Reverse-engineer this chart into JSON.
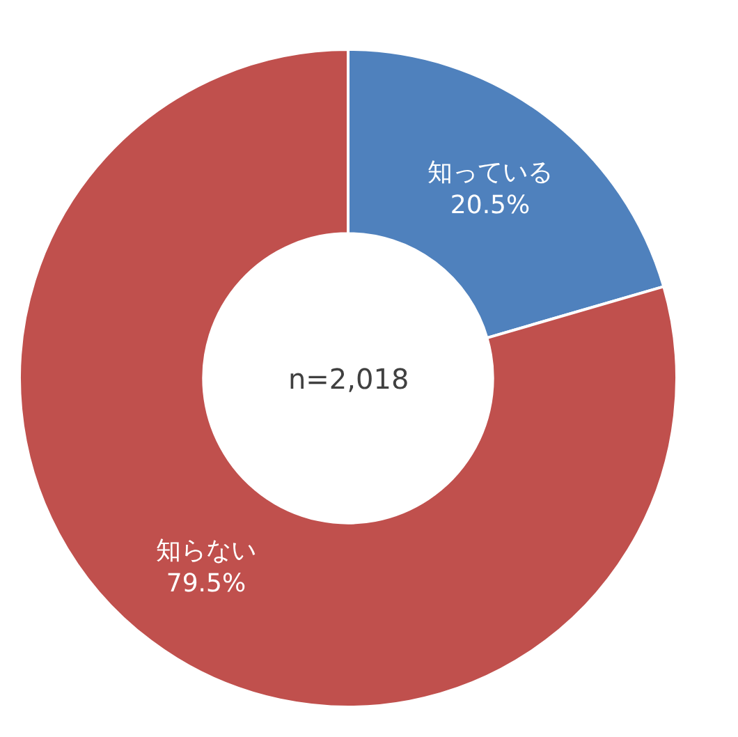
{
  "chart_data": {
    "type": "donut",
    "categories": [
      "知っている",
      "知らない"
    ],
    "values": [
      20.5,
      79.5
    ],
    "colors": [
      "#4f81bd",
      "#c0504d"
    ],
    "value_labels": [
      "20.5%",
      "79.5%"
    ],
    "legend": false,
    "annotations": [
      "n=2,018"
    ]
  }
}
